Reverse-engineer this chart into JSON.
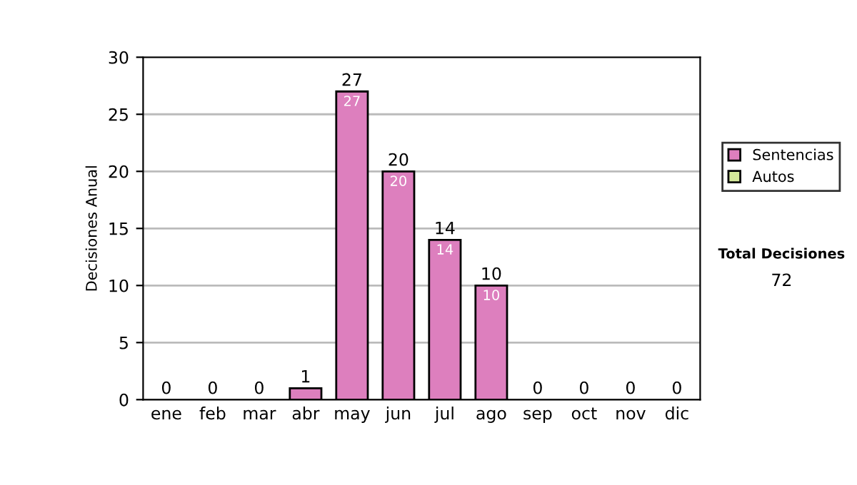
{
  "chart_data": {
    "type": "bar",
    "stacked": true,
    "ylabel": "Decisiones Anual",
    "categories": [
      "ene",
      "feb",
      "mar",
      "abr",
      "may",
      "jun",
      "jul",
      "ago",
      "sep",
      "oct",
      "nov",
      "dic"
    ],
    "series": [
      {
        "name": "Sentencias",
        "color": "#dd7fbe",
        "values": [
          0,
          0,
          0,
          1,
          27,
          20,
          14,
          10,
          0,
          0,
          0,
          0
        ],
        "value_labels": [
          null,
          null,
          null,
          null,
          "27",
          "20",
          "14",
          "10",
          null,
          null,
          null,
          null
        ]
      },
      {
        "name": "Autos",
        "color": "#d4e89a",
        "values": [
          0,
          0,
          0,
          0,
          0,
          0,
          0,
          0,
          0,
          0,
          0,
          0
        ]
      }
    ],
    "totals": [
      "0",
      "0",
      "0",
      "1",
      "27",
      "20",
      "14",
      "10",
      "0",
      "0",
      "0",
      "0"
    ],
    "ylim": [
      0,
      30
    ],
    "yticks": [
      0,
      5,
      10,
      15,
      20,
      25,
      30
    ],
    "grid": "y",
    "legend": "right",
    "annotations": [
      "Total Decisiones",
      "72"
    ]
  }
}
